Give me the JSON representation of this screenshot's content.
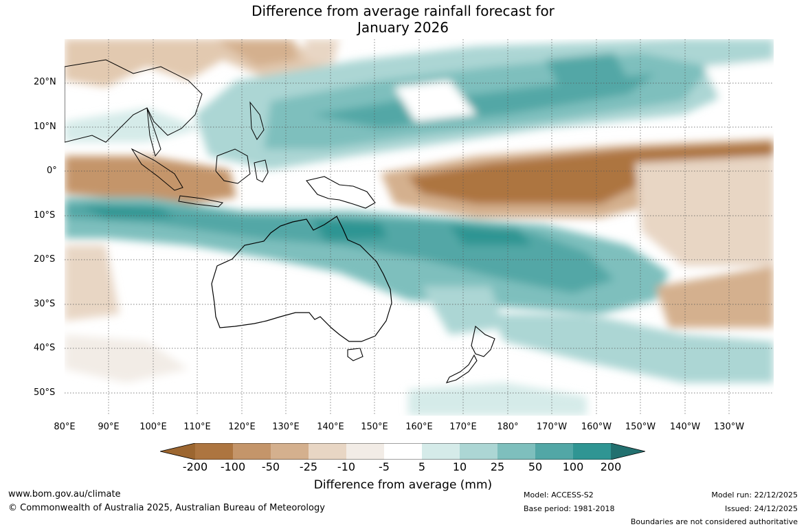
{
  "title_line1": "Difference from average rainfall forecast for",
  "title_line2": "January 2026",
  "lat_labels": [
    "20°N",
    "10°N",
    "0°",
    "10°S",
    "20°S",
    "30°S",
    "40°S",
    "50°S"
  ],
  "lon_labels": [
    "80°E",
    "90°E",
    "100°E",
    "110°E",
    "120°E",
    "130°E",
    "140°E",
    "150°E",
    "160°E",
    "170°E",
    "180°",
    "170°W",
    "160°W",
    "150°W",
    "140°W",
    "130°W"
  ],
  "colorbar": {
    "labels": [
      "-200",
      "-100",
      "-50",
      "-25",
      "-10",
      "-5",
      "5",
      "10",
      "25",
      "50",
      "100",
      "200"
    ],
    "colors": [
      "#9c6630",
      "#ad7540",
      "#c4956a",
      "#d4b08e",
      "#e8d6c4",
      "#f2ece6",
      "#ffffff",
      "#d5ebe9",
      "#acd6d4",
      "#7ebfbd",
      "#52a7a6",
      "#2f9593",
      "#22706f"
    ],
    "title": "Difference from average (mm)"
  },
  "footer": {
    "website": "www.bom.gov.au/climate",
    "copyright": "© Commonwealth of Australia 2025, Australian Bureau of Meteorology",
    "model": "Model: ACCESS-S2",
    "base_period": "Base period: 1981-2018",
    "model_run": "Model run: 22/12/2025",
    "issued": "Issued: 24/12/2025",
    "disclaimer": "Boundaries are not considered authoritative"
  }
}
